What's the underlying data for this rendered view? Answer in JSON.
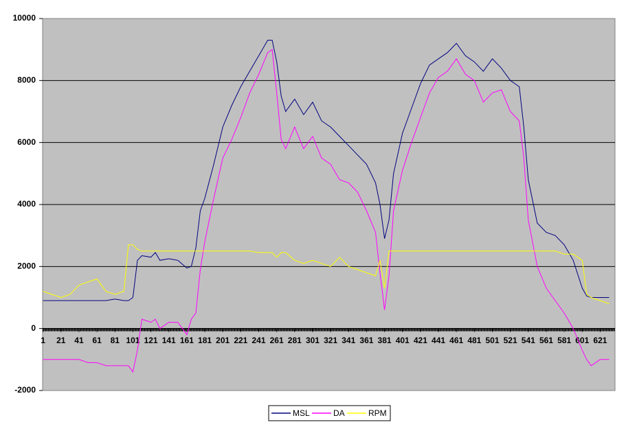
{
  "chart_data": {
    "type": "line",
    "x": [
      1,
      11,
      21,
      31,
      41,
      51,
      61,
      71,
      81,
      91,
      96,
      101,
      106,
      111,
      121,
      126,
      131,
      141,
      151,
      161,
      166,
      171,
      176,
      181,
      191,
      201,
      211,
      221,
      231,
      241,
      251,
      256,
      261,
      266,
      271,
      281,
      291,
      301,
      311,
      321,
      331,
      341,
      351,
      361,
      371,
      376,
      381,
      386,
      391,
      401,
      411,
      421,
      431,
      441,
      451,
      461,
      471,
      481,
      491,
      501,
      511,
      521,
      531,
      536,
      541,
      551,
      561,
      571,
      581,
      591,
      601,
      606,
      611,
      621,
      631
    ],
    "series": [
      {
        "name": "MSL",
        "color": "#000080",
        "values": [
          900,
          900,
          900,
          900,
          900,
          900,
          900,
          900,
          950,
          900,
          900,
          1000,
          2200,
          2350,
          2300,
          2450,
          2200,
          2250,
          2200,
          1950,
          2000,
          2600,
          3800,
          4200,
          5300,
          6500,
          7200,
          7800,
          8300,
          8800,
          9300,
          9300,
          8600,
          7500,
          7000,
          7400,
          6900,
          7300,
          6700,
          6500,
          6200,
          5900,
          5600,
          5300,
          4700,
          4000,
          2900,
          3500,
          5000,
          6300,
          7100,
          7900,
          8500,
          8700,
          8900,
          9200,
          8800,
          8600,
          8300,
          8700,
          8400,
          8000,
          7800,
          6500,
          4800,
          3400,
          3100,
          3000,
          2700,
          2200,
          1300,
          1050,
          1000,
          1000,
          1000
        ]
      },
      {
        "name": "DA",
        "color": "#ff00ff",
        "values": [
          -1000,
          -1000,
          -1000,
          -1000,
          -1000,
          -1100,
          -1100,
          -1200,
          -1200,
          -1200,
          -1200,
          -1400,
          -700,
          300,
          200,
          300,
          0,
          200,
          200,
          -200,
          300,
          500,
          1900,
          2800,
          4200,
          5500,
          6100,
          6800,
          7600,
          8200,
          8900,
          9000,
          7600,
          6100,
          5800,
          6500,
          5800,
          6200,
          5500,
          5300,
          4800,
          4700,
          4400,
          3800,
          3100,
          1800,
          600,
          1700,
          3800,
          5100,
          6000,
          6800,
          7600,
          8100,
          8300,
          8700,
          8200,
          8000,
          7300,
          7600,
          7700,
          7000,
          6700,
          5500,
          3500,
          2000,
          1300,
          900,
          500,
          0,
          -700,
          -1000,
          -1200,
          -1000,
          -1000
        ]
      },
      {
        "name": "RPM",
        "color": "#ffff00",
        "values": [
          1200,
          1100,
          1000,
          1100,
          1400,
          1500,
          1600,
          1200,
          1100,
          1200,
          2700,
          2700,
          2550,
          2500,
          2500,
          2500,
          2500,
          2500,
          2500,
          2500,
          2500,
          2500,
          2500,
          2500,
          2500,
          2500,
          2500,
          2500,
          2500,
          2450,
          2450,
          2450,
          2300,
          2450,
          2450,
          2200,
          2100,
          2200,
          2100,
          2000,
          2300,
          2000,
          1900,
          1800,
          1700,
          2200,
          1300,
          2500,
          2500,
          2500,
          2500,
          2500,
          2500,
          2500,
          2500,
          2500,
          2500,
          2500,
          2500,
          2500,
          2500,
          2500,
          2500,
          2500,
          2500,
          2500,
          2500,
          2500,
          2400,
          2400,
          2200,
          1100,
          1000,
          900,
          800
        ]
      }
    ],
    "xlim": [
      0.5,
      637.5
    ],
    "xticks": [
      1,
      21,
      41,
      61,
      81,
      101,
      121,
      141,
      161,
      181,
      201,
      221,
      241,
      261,
      281,
      301,
      321,
      341,
      361,
      381,
      401,
      421,
      441,
      461,
      481,
      501,
      521,
      541,
      561,
      581,
      601,
      621
    ],
    "ylim": [
      -2000,
      10000
    ],
    "yticks": [
      -2000,
      0,
      2000,
      4000,
      6000,
      8000,
      10000
    ],
    "grid": true,
    "legend": "bottom"
  }
}
